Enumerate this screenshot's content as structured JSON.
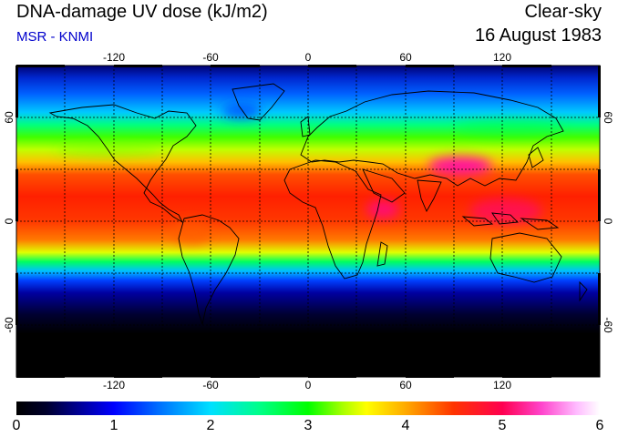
{
  "header": {
    "title": "DNA-damage UV dose (kJ/m2)",
    "subtitle": "MSR - KNMI",
    "condition": "Clear-sky",
    "date": "16 August 1983"
  },
  "colors": {
    "subtitle": "#0000cc"
  },
  "map": {
    "longitude_ticks": [
      "-120",
      "-60",
      "0",
      "60",
      "120"
    ],
    "latitude_ticks": [
      "60",
      "0",
      "-60"
    ]
  },
  "colorbar": {
    "ticks": [
      "0",
      "1",
      "2",
      "3",
      "4",
      "5",
      "6"
    ]
  }
}
